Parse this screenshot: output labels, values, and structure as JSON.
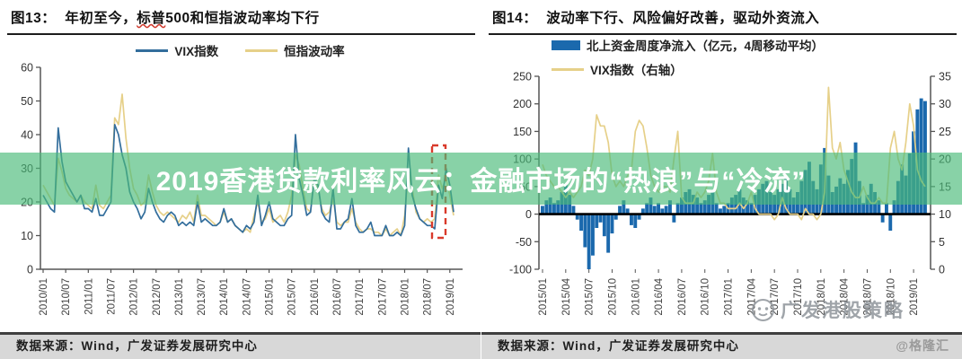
{
  "banner": {
    "text": "2019香港贷款利率风云：金融市场的“热浪”与“冷流”",
    "overlay_color": "rgba(74,186,122,0.66)",
    "text_color": "#ffffff"
  },
  "figures": [
    {
      "label": "图13：",
      "title_pre": "年初至今，",
      "title_wavy": "标普",
      "title_rest": "500和恒指波动率均下行",
      "source": "数据来源：Wind，广发证券发展研究中心"
    },
    {
      "label": "图14：",
      "title": "波动率下行、风险偏好改善，驱动外资流入",
      "source": "数据来源：Wind，广发证券发展研究中心"
    }
  ],
  "watermarks": {
    "strategy": "广发港股策略",
    "site": "@格隆汇"
  },
  "chart_data": [
    {
      "type": "line",
      "title": "年初至今，标普500和恒指波动率均下行",
      "x_start": "2010/01",
      "x_end": "2019/02",
      "x_tick_labels": [
        "2010/01",
        "2010/07",
        "2011/01",
        "2011/07",
        "2012/01",
        "2012/07",
        "2013/01",
        "2013/07",
        "2014/01",
        "2014/07",
        "2015/01",
        "2015/07",
        "2016/01",
        "2016/07",
        "2017/01",
        "2017/07",
        "2018/01",
        "2018/07",
        "2019/01"
      ],
      "ylim": [
        0,
        60
      ],
      "yticks": [
        0,
        10,
        20,
        30,
        40,
        50,
        60
      ],
      "series": [
        {
          "name": "VIX指数",
          "color": "#336e9c",
          "values": [
            22,
            20,
            18,
            17,
            42,
            32,
            26,
            24,
            22,
            20,
            22,
            18,
            18,
            17,
            21,
            16,
            16,
            18,
            20,
            43,
            40,
            34,
            30,
            23,
            20,
            18,
            15,
            17,
            24,
            20,
            17,
            15,
            14,
            16,
            17,
            16,
            13,
            14,
            13,
            14,
            13,
            20,
            14,
            15,
            14,
            13,
            13,
            14,
            18,
            14,
            15,
            13,
            12,
            11,
            13,
            12,
            14,
            22,
            13,
            16,
            20,
            15,
            14,
            13,
            13,
            15,
            16,
            40,
            27,
            22,
            16,
            17,
            27,
            25,
            17,
            15,
            14,
            24,
            12,
            12,
            14,
            15,
            21,
            13,
            11,
            11,
            12,
            14,
            10,
            10,
            10,
            13,
            10,
            10,
            11,
            10,
            13,
            36,
            22,
            18,
            15,
            14,
            13,
            13,
            12,
            25,
            21,
            30,
            25,
            17
          ]
        },
        {
          "name": "恒指波动率",
          "color": "#e6d089",
          "values": [
            25,
            23,
            21,
            19,
            33,
            29,
            24,
            22,
            21,
            20,
            22,
            20,
            19,
            18,
            25,
            19,
            18,
            20,
            22,
            45,
            43,
            52,
            39,
            30,
            24,
            22,
            19,
            20,
            28,
            23,
            19,
            17,
            16,
            17,
            16,
            15,
            14,
            16,
            15,
            17,
            14,
            22,
            16,
            16,
            15,
            14,
            13,
            14,
            17,
            14,
            15,
            13,
            12,
            11,
            12,
            11,
            16,
            20,
            14,
            15,
            18,
            14,
            15,
            16,
            14,
            17,
            22,
            34,
            31,
            24,
            18,
            17,
            28,
            24,
            18,
            16,
            17,
            21,
            14,
            13,
            14,
            14,
            18,
            14,
            12,
            11,
            12,
            12,
            11,
            11,
            10,
            12,
            10,
            11,
            12,
            10,
            16,
            29,
            24,
            17,
            15,
            14,
            15,
            14,
            15,
            28,
            24,
            27,
            22,
            16
          ]
        }
      ],
      "annotation_box": {
        "meaning": "highlight of early-2019 volatility decline",
        "color": "#d93a2b",
        "x_range": [
          "2018/10",
          "2019/02"
        ],
        "y_range": [
          9,
          37
        ]
      }
    },
    {
      "type": "bar+line",
      "title": "波动率下行、风险偏好改善，驱动外资流入",
      "x_start": "2015/01",
      "x_end": "2019/02",
      "x_tick_labels": [
        "2015/01",
        "2015/04",
        "2015/07",
        "2015/10",
        "2016/01",
        "2016/04",
        "2016/07",
        "2016/10",
        "2017/01",
        "2017/04",
        "2017/07",
        "2017/10",
        "2018/01",
        "2018/04",
        "2018/07",
        "2018/10",
        "2019/01"
      ],
      "left_ylim": [
        -100,
        250
      ],
      "left_yticks": [
        -100,
        -50,
        0,
        50,
        100,
        150,
        200,
        250
      ],
      "right_ylim": [
        0,
        35
      ],
      "right_yticks": [
        0,
        5,
        10,
        15,
        20,
        25,
        30,
        35
      ],
      "bar_series": {
        "name": "北上资金周度净流入（亿元，4周移动平均）",
        "color": "#1b69ad",
        "axis": "left",
        "values": [
          15,
          25,
          30,
          20,
          25,
          40,
          55,
          35,
          15,
          -10,
          -30,
          -60,
          -100,
          -75,
          -25,
          -15,
          -40,
          -70,
          -35,
          -10,
          15,
          25,
          10,
          -20,
          -25,
          -10,
          10,
          20,
          30,
          15,
          20,
          10,
          15,
          25,
          -15,
          20,
          30,
          40,
          45,
          35,
          30,
          20,
          25,
          35,
          40,
          20,
          10,
          15,
          20,
          30,
          35,
          45,
          30,
          25,
          20,
          35,
          45,
          55,
          60,
          40,
          35,
          45,
          55,
          65,
          45,
          30,
          40,
          60,
          80,
          95,
          60,
          45,
          90,
          120,
          70,
          40,
          50,
          65,
          55,
          80,
          100,
          130,
          60,
          20,
          35,
          55,
          40,
          25,
          -15,
          20,
          -30,
          25,
          60,
          90,
          70,
          110,
          150,
          190,
          210,
          205
        ]
      },
      "line_series": {
        "name": "VIX指数（右轴）",
        "color": "#e6d089",
        "axis": "right",
        "values": [
          19,
          17,
          16,
          15,
          15,
          14,
          13,
          14,
          13,
          14,
          15,
          18,
          17,
          20,
          28,
          26,
          26,
          23,
          17,
          15,
          16,
          15,
          17,
          18,
          25,
          27,
          26,
          22,
          17,
          15,
          14,
          15,
          15,
          14,
          20,
          25,
          13,
          12,
          12,
          12,
          14,
          13,
          14,
          16,
          21,
          14,
          12,
          12,
          11,
          11,
          11,
          12,
          11,
          12,
          14,
          11,
          10,
          10,
          10,
          10,
          9,
          10,
          13,
          11,
          10,
          10,
          10,
          9,
          11,
          10,
          10,
          9,
          10,
          14,
          33,
          22,
          20,
          23,
          18,
          16,
          14,
          13,
          13,
          15,
          13,
          12,
          12,
          13,
          12,
          12,
          22,
          25,
          20,
          18,
          23,
          30,
          26,
          18,
          16,
          15
        ]
      }
    }
  ]
}
